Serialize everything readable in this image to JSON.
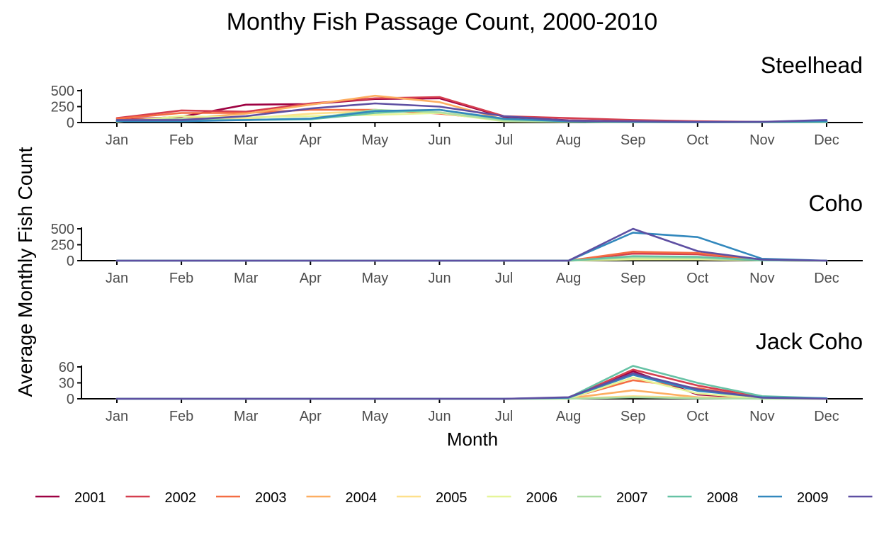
{
  "chart_data": {
    "type": "line",
    "title": "Monthy Fish Passage Count, 2000-2010",
    "ylabel": "Average Monthly Fish Count",
    "xlabel": "Month",
    "categories": [
      "Jan",
      "Feb",
      "Mar",
      "Apr",
      "May",
      "Jun",
      "Jul",
      "Aug",
      "Sep",
      "Oct",
      "Nov",
      "Dec"
    ],
    "series_names": [
      "2001",
      "2002",
      "2003",
      "2004",
      "2005",
      "2006",
      "2007",
      "2008",
      "2009",
      ""
    ],
    "colors": [
      "#9e0142",
      "#d53e4f",
      "#f46d43",
      "#fdae61",
      "#fee08b",
      "#e6f598",
      "#abdda4",
      "#66c2a5",
      "#3288bd",
      "#5e4fa2"
    ],
    "legend_position": "bottom",
    "panels": [
      {
        "name": "Steelhead",
        "ylim": [
          0,
          500
        ],
        "yticks": [
          0,
          250,
          500
        ],
        "series": [
          {
            "name": "2001",
            "values": [
              40,
              90,
              280,
              290,
              370,
              380,
              90,
              35,
              15,
              5,
              5,
              10
            ]
          },
          {
            "name": "2002",
            "values": [
              70,
              190,
              170,
              300,
              380,
              400,
              100,
              70,
              40,
              20,
              10,
              30
            ]
          },
          {
            "name": "2003",
            "values": [
              60,
              150,
              150,
              200,
              200,
              140,
              40,
              30,
              20,
              10,
              5,
              10
            ]
          },
          {
            "name": "2004",
            "values": [
              40,
              60,
              140,
              280,
              420,
              320,
              50,
              20,
              10,
              5,
              5,
              10
            ]
          },
          {
            "name": "2005",
            "values": [
              20,
              40,
              60,
              140,
              180,
              200,
              40,
              10,
              5,
              5,
              5,
              10
            ]
          },
          {
            "name": "2006",
            "values": [
              10,
              100,
              80,
              100,
              120,
              150,
              20,
              10,
              5,
              5,
              5,
              5
            ]
          },
          {
            "name": "2007",
            "values": [
              20,
              60,
              40,
              60,
              200,
              160,
              30,
              10,
              5,
              5,
              5,
              5
            ]
          },
          {
            "name": "2008",
            "values": [
              30,
              30,
              40,
              50,
              150,
              200,
              50,
              20,
              10,
              5,
              5,
              10
            ]
          },
          {
            "name": "2009",
            "values": [
              20,
              20,
              40,
              60,
              180,
              200,
              60,
              20,
              10,
              5,
              10,
              20
            ]
          },
          {
            "name": "",
            "values": [
              40,
              40,
              100,
              220,
              300,
              250,
              100,
              30,
              20,
              10,
              10,
              40
            ]
          }
        ]
      },
      {
        "name": "Coho",
        "ylim": [
          0,
          500
        ],
        "yticks": [
          0,
          250,
          500
        ],
        "series": [
          {
            "name": "2001",
            "values": [
              0,
              0,
              0,
              0,
              0,
              0,
              0,
              0,
              30,
              20,
              5,
              0
            ]
          },
          {
            "name": "2002",
            "values": [
              0,
              0,
              0,
              0,
              0,
              0,
              0,
              0,
              110,
              100,
              10,
              0
            ]
          },
          {
            "name": "2003",
            "values": [
              0,
              0,
              0,
              0,
              0,
              0,
              0,
              0,
              140,
              120,
              10,
              0
            ]
          },
          {
            "name": "2004",
            "values": [
              0,
              0,
              0,
              0,
              0,
              0,
              0,
              0,
              60,
              50,
              5,
              0
            ]
          },
          {
            "name": "2005",
            "values": [
              0,
              0,
              0,
              0,
              0,
              0,
              0,
              0,
              40,
              30,
              5,
              0
            ]
          },
          {
            "name": "2006",
            "values": [
              0,
              0,
              0,
              0,
              0,
              0,
              0,
              0,
              20,
              20,
              5,
              0
            ]
          },
          {
            "name": "2007",
            "values": [
              0,
              0,
              0,
              0,
              0,
              0,
              0,
              0,
              50,
              40,
              5,
              0
            ]
          },
          {
            "name": "2008",
            "values": [
              0,
              0,
              0,
              0,
              0,
              0,
              0,
              0,
              70,
              60,
              5,
              0
            ]
          },
          {
            "name": "2009",
            "values": [
              0,
              0,
              0,
              0,
              0,
              0,
              0,
              0,
              440,
              370,
              30,
              0
            ]
          },
          {
            "name": "",
            "values": [
              0,
              0,
              0,
              0,
              0,
              0,
              0,
              0,
              500,
              150,
              15,
              0
            ]
          }
        ]
      },
      {
        "name": "Jack Coho",
        "ylim": [
          0,
          60
        ],
        "yticks": [
          0,
          30,
          60
        ],
        "series": [
          {
            "name": "2001",
            "values": [
              0,
              0,
              0,
              0,
              0,
              0,
              0,
              1,
              52,
              8,
              1,
              0
            ]
          },
          {
            "name": "2002",
            "values": [
              0,
              0,
              0,
              0,
              0,
              0,
              0,
              1,
              55,
              25,
              3,
              0
            ]
          },
          {
            "name": "2003",
            "values": [
              0,
              0,
              0,
              0,
              0,
              0,
              0,
              1,
              35,
              20,
              2,
              0
            ]
          },
          {
            "name": "2004",
            "values": [
              0,
              0,
              0,
              0,
              0,
              0,
              0,
              1,
              16,
              3,
              1,
              0
            ]
          },
          {
            "name": "2005",
            "values": [
              0,
              0,
              0,
              0,
              0,
              0,
              0,
              0,
              5,
              2,
              0,
              0
            ]
          },
          {
            "name": "2006",
            "values": [
              0,
              0,
              0,
              0,
              0,
              0,
              0,
              0,
              40,
              10,
              1,
              0
            ]
          },
          {
            "name": "2007",
            "values": [
              0,
              0,
              0,
              0,
              0,
              0,
              0,
              0,
              3,
              1,
              0,
              0
            ]
          },
          {
            "name": "2008",
            "values": [
              0,
              0,
              0,
              0,
              0,
              0,
              0,
              2,
              62,
              30,
              5,
              1
            ]
          },
          {
            "name": "2009",
            "values": [
              0,
              0,
              0,
              0,
              0,
              0,
              0,
              2,
              45,
              15,
              3,
              1
            ]
          },
          {
            "name": "",
            "values": [
              0,
              0,
              0,
              0,
              0,
              0,
              0,
              3,
              48,
              18,
              2,
              0
            ]
          }
        ]
      }
    ]
  }
}
